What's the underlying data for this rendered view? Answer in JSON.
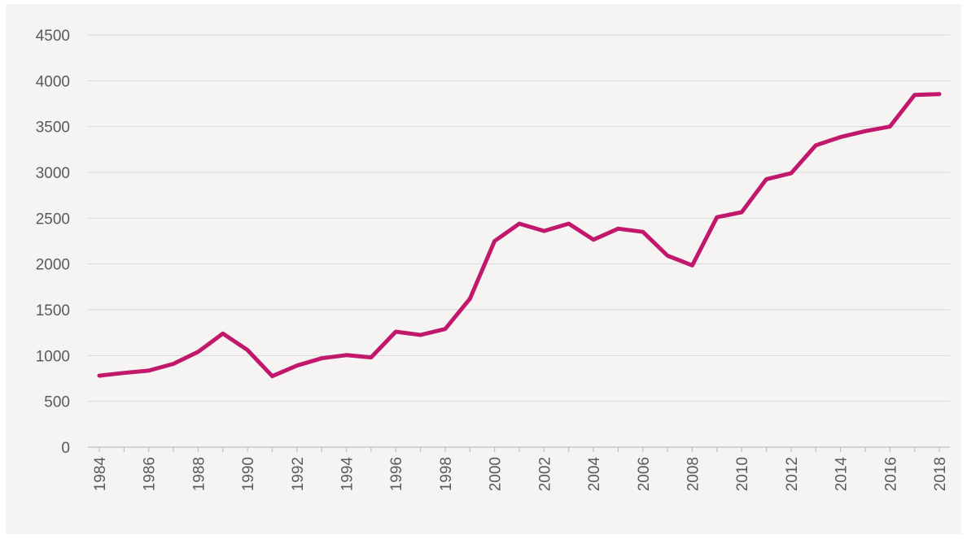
{
  "chart_data": {
    "type": "line",
    "title": "",
    "xlabel": "",
    "ylabel": "",
    "ylim": [
      0,
      4500
    ],
    "yticks": [
      0,
      500,
      1000,
      1500,
      2000,
      2500,
      3000,
      3500,
      4000,
      4500
    ],
    "xtick_labels": [
      "1984",
      "1986",
      "1988",
      "1990",
      "1992",
      "1994",
      "1996",
      "1998",
      "2000",
      "2002",
      "2004",
      "2006",
      "2008",
      "2010",
      "2012",
      "2014",
      "2016",
      "2018"
    ],
    "grid": true,
    "legend": "none",
    "colors": {
      "line": "#c2186b",
      "background": "#f5f4f3",
      "grid": "#d9d9d9",
      "text": "#5a5a5a"
    },
    "series": [
      {
        "x": [
          1984,
          1985,
          1986,
          1987,
          1988,
          1989,
          1990,
          1991,
          1992,
          1993,
          1994,
          1995,
          1996,
          1997,
          1998,
          1999,
          2000,
          2001,
          2002,
          2003,
          2004,
          2005,
          2006,
          2007,
          2008,
          2009,
          2010,
          2011,
          2012,
          2013,
          2014,
          2015,
          2016,
          2017,
          2018
        ],
        "values": [
          780,
          810,
          835,
          910,
          1040,
          1240,
          1060,
          775,
          890,
          970,
          1005,
          980,
          1260,
          1225,
          1290,
          1620,
          2250,
          2440,
          2360,
          2440,
          2265,
          2385,
          2350,
          2090,
          1985,
          2510,
          2565,
          2925,
          2990,
          3295,
          3385,
          3450,
          3500,
          3845,
          3855
        ]
      }
    ]
  }
}
